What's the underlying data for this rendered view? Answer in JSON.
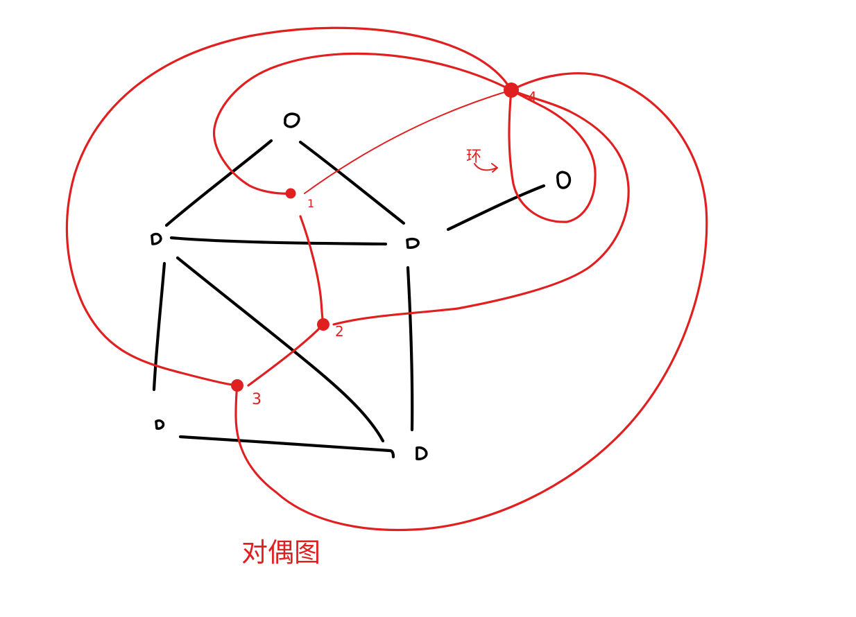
{
  "diagram": {
    "caption": "对偶图",
    "loop_note": "环",
    "dual_vertices": [
      {
        "id": "dual-vertex-1",
        "label": "1"
      },
      {
        "id": "dual-vertex-2",
        "label": "2"
      },
      {
        "id": "dual-vertex-3",
        "label": "3"
      },
      {
        "id": "dual-vertex-4",
        "label": "4"
      }
    ],
    "colors": {
      "primal": "#000000",
      "dual": "#e02020",
      "background": "#ffffff"
    }
  }
}
